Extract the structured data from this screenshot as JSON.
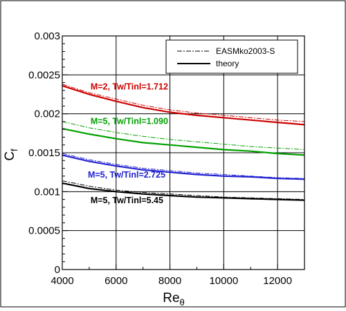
{
  "chart_data": {
    "type": "line",
    "xlabel": "Re",
    "xlabel_sub": "θ",
    "ylabel": "C",
    "ylabel_sub": "f",
    "xlim": [
      4000,
      13000
    ],
    "ylim": [
      0,
      0.003
    ],
    "grid": true,
    "x_ticks": [
      4000,
      6000,
      8000,
      10000,
      12000
    ],
    "x_tick_labels": [
      "4000",
      "6000",
      "8000",
      "10000",
      "12000"
    ],
    "y_ticks": [
      0,
      0.0005,
      0.001,
      0.0015,
      0.002,
      0.0025,
      0.003
    ],
    "y_tick_labels": [
      "0",
      "0.0005",
      "0.001",
      "0.0015",
      "0.002",
      "0.0025",
      "0.003"
    ],
    "legend": {
      "placement": "top-right",
      "entries": [
        {
          "label": "EASMko2003-S",
          "style": "dash-dot"
        },
        {
          "label": "theory",
          "style": "solid"
        }
      ]
    },
    "x": [
      4000,
      5000,
      6000,
      7000,
      8000,
      9000,
      10000,
      11000,
      12000,
      13000
    ],
    "series": [
      {
        "group": "M=2, Tw/Tinf=1.712",
        "kind": "theory",
        "color": "#cc0000",
        "values": [
          0.00236,
          0.00225,
          0.00216,
          0.00208,
          0.00202,
          0.00198,
          0.00195,
          0.00192,
          0.00189,
          0.00186
        ]
      },
      {
        "group": "M=2, Tw/Tinf=1.712",
        "kind": "EASMko2003-S",
        "color": "#cc0000",
        "values": [
          0.00238,
          0.00227,
          0.00219,
          0.00211,
          0.00205,
          0.00201,
          0.00198,
          0.00195,
          0.00192,
          0.0019
        ]
      },
      {
        "group": "M=5, Tw/Tinf=1.090",
        "kind": "theory",
        "color": "#00a000",
        "values": [
          0.00181,
          0.00174,
          0.00168,
          0.00163,
          0.0016,
          0.00157,
          0.00154,
          0.00152,
          0.00149,
          0.00147
        ]
      },
      {
        "group": "M=5, Tw/Tinf=1.090",
        "kind": "EASMko2003-S",
        "color": "#00a000",
        "values": [
          0.0019,
          0.00182,
          0.00176,
          0.00171,
          0.00167,
          0.00164,
          0.00161,
          0.00158,
          0.00156,
          0.00154
        ]
      },
      {
        "group": "M=5, Tw/Tinf=2.725",
        "kind": "theory",
        "color": "#2020d0",
        "values": [
          0.00147,
          0.00139,
          0.00133,
          0.00128,
          0.00125,
          0.00122,
          0.0012,
          0.00119,
          0.00117,
          0.00116
        ]
      },
      {
        "group": "M=5, Tw/Tinf=2.725",
        "kind": "EASMko2003-S",
        "color": "#2020d0",
        "values": [
          0.00149,
          0.00141,
          0.00135,
          0.0013,
          0.00127,
          0.00124,
          0.00122,
          0.0012,
          0.00118,
          0.00117
        ]
      },
      {
        "group": "M=5, Tw/Tinf=5.45",
        "kind": "theory",
        "color": "#000000",
        "values": [
          0.00111,
          0.00104,
          0.001,
          0.00097,
          0.00095,
          0.00093,
          0.00092,
          0.00091,
          0.0009,
          0.00089
        ]
      },
      {
        "group": "M=5, Tw/Tinf=5.45",
        "kind": "EASMko2003-S",
        "color": "#000000",
        "values": [
          0.00114,
          0.00107,
          0.00102,
          0.00099,
          0.00097,
          0.00095,
          0.00093,
          0.00092,
          0.00091,
          0.0009
        ]
      }
    ],
    "annotations": [
      {
        "text": "M=2, Tw/Tinl=1.712",
        "x": 5050,
        "y": 0.00231,
        "color": "#cc0000"
      },
      {
        "text": "M=5, Tw/Tinl=1.090",
        "x": 5050,
        "y": 0.00187,
        "color": "#00a000"
      },
      {
        "text": "M=5, Tw/Tinl=2.725",
        "x": 4950,
        "y": 0.00118,
        "color": "#2020d0"
      },
      {
        "text": "M=5, Tw/Tinl=5.45",
        "x": 5050,
        "y": 0.00085,
        "color": "#000000"
      }
    ]
  }
}
